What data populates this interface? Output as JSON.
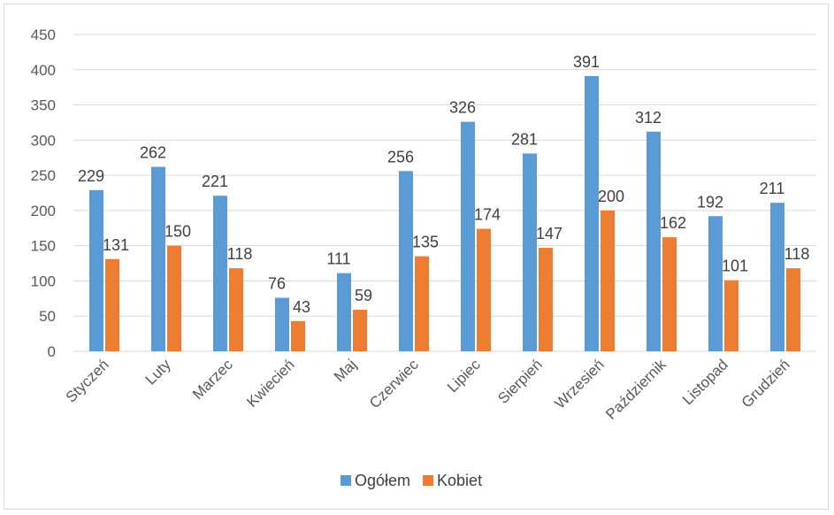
{
  "chart_data": {
    "type": "bar",
    "categories": [
      "Styczeń",
      "Luty",
      "Marzec",
      "Kwiecień",
      "Maj",
      "Czerwiec",
      "Lipiec",
      "Sierpień",
      "Wrzesień",
      "Październik",
      "Listopad",
      "Grudzień"
    ],
    "series": [
      {
        "name": "Ogółem",
        "color": "#5b9bd5",
        "values": [
          229,
          262,
          221,
          76,
          111,
          256,
          326,
          281,
          391,
          312,
          192,
          211
        ]
      },
      {
        "name": "Kobiet",
        "color": "#ed7d31",
        "values": [
          131,
          150,
          118,
          43,
          59,
          135,
          174,
          147,
          200,
          162,
          101,
          118
        ]
      }
    ],
    "ylim": [
      0,
      450
    ],
    "yticks": [
      0,
      50,
      100,
      150,
      200,
      250,
      300,
      350,
      400,
      450
    ],
    "grid": true,
    "legend_position": "bottom",
    "data_labels": true
  }
}
